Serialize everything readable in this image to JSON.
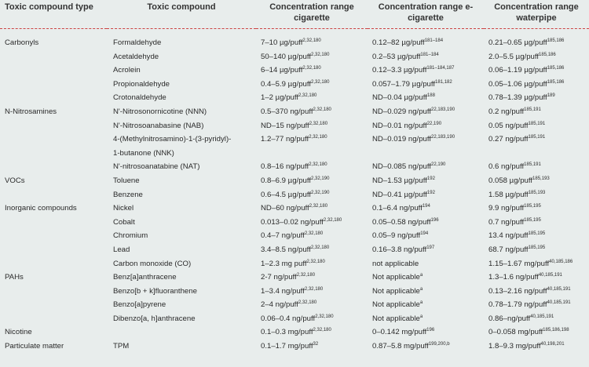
{
  "headers": {
    "type": "Toxic compound type",
    "compound": "Toxic compound",
    "cig": "Concentration range cigarette",
    "ecig": "Concentration range e-cigarette",
    "wp": "Concentration range waterpipe"
  },
  "rows": [
    {
      "type": "Carbonyls",
      "compound": "Formaldehyde",
      "cig": "7–10 µg/puff",
      "cig_ref": "2,32,180",
      "ecig": "0.12–82 µg/puff",
      "ecig_ref": "181–184",
      "wp": "0.21–0.65 µg/puff",
      "wp_ref": "185,186"
    },
    {
      "type": "",
      "compound": "Acetaldehyde",
      "cig": "50–140 µg/puff",
      "cig_ref": "2,32,180",
      "ecig": "0.2–53 µg/puff",
      "ecig_ref": "181–184",
      "wp": "2.0–5.5 µg/puff",
      "wp_ref": "185,186"
    },
    {
      "type": "",
      "compound": "Acrolein",
      "cig": "6–14 µg/puff",
      "cig_ref": "2,32,180",
      "ecig": "0.12–3.3 µg/puff",
      "ecig_ref": "181–184,187",
      "wp": "0.06–1.19 µg/puff",
      "wp_ref": "185,186"
    },
    {
      "type": "",
      "compound": "Propionaldehyde",
      "cig": "0.4–5.9 µg/puff",
      "cig_ref": "2,32,180",
      "ecig": "0.057–1.79 µg/puff",
      "ecig_ref": "181,182",
      "wp": "0.05–1.06 µg/puff",
      "wp_ref": "185,186"
    },
    {
      "type": "",
      "compound": "Crotonaldehyde",
      "cig": "1–2 µg/puff",
      "cig_ref": "2,32,180",
      "ecig": "ND–0.04 µg/puff",
      "ecig_ref": "188",
      "wp": "0.78–1.39 µg/puff",
      "wp_ref": "189"
    },
    {
      "type": "N-Nitrosamines",
      "compound": "N'-Nitrosonornicotine (NNN)",
      "cig": "0.5–370 ng/puff",
      "cig_ref": "2,32,180",
      "ecig": "ND–0.029 ng/puff",
      "ecig_ref": "22,183,190",
      "wp": "0.2 ng/puff",
      "wp_ref": "185,191"
    },
    {
      "type": "",
      "compound": "N'-Nitrosoanabasine (NAB)",
      "cig": "ND–15 ng/puff",
      "cig_ref": "2,32,180",
      "ecig": "ND–0.01 ng/puff",
      "ecig_ref": "22,190",
      "wp": "0.05 ng/puff",
      "wp_ref": "185,191"
    },
    {
      "type": "",
      "compound": "4-(Methylnitrosamino)-1-(3-pyridyl)-",
      "cig": "1.2–77 ng/puff",
      "cig_ref": "2,32,180",
      "ecig": "ND–0.019 ng/puff",
      "ecig_ref": "22,183,190",
      "wp": "0.27 ng/puff",
      "wp_ref": "185,191"
    },
    {
      "type": "",
      "compound": "1-butanone (NNK)",
      "cig": "",
      "cig_ref": "",
      "ecig": "",
      "ecig_ref": "",
      "wp": "",
      "wp_ref": ""
    },
    {
      "type": "",
      "compound": "N'-nitrosoanatabine (NAT)",
      "cig": "0.8–16 ng/puff",
      "cig_ref": "2,32,180",
      "ecig": "ND–0.085 ng/puff",
      "ecig_ref": "22,190",
      "wp": "0.6 ng/puff",
      "wp_ref": "185,191"
    },
    {
      "type": "VOCs",
      "compound": "Toluene",
      "cig": "0.8–6.9 µg/puff",
      "cig_ref": "2,32,190",
      "ecig": "ND–1.53 µg/puff",
      "ecig_ref": "192",
      "wp": "0.058 µg/puff",
      "wp_ref": "185,193"
    },
    {
      "type": "",
      "compound": "Benzene",
      "cig": "0.6–4.5 µg/puff",
      "cig_ref": "2,32,190",
      "ecig": "ND–0.41 µg/puff",
      "ecig_ref": "192",
      "wp": "1.58 µg/puff",
      "wp_ref": "185,193"
    },
    {
      "type": "Inorganic compounds",
      "compound": "Nickel",
      "cig": "ND–60 ng/puff",
      "cig_ref": "2,32,180",
      "ecig": "0.1–6.4 ng/puff",
      "ecig_ref": "194",
      "wp": "9.9 ng/puff",
      "wp_ref": "185,195"
    },
    {
      "type": "",
      "compound": "Cobalt",
      "cig": "0.013–0.02 ng/puff",
      "cig_ref": "2,32,180",
      "ecig": "0.05–0.58 ng/puff",
      "ecig_ref": "196",
      "wp": "0.7 ng/puff",
      "wp_ref": "185,195"
    },
    {
      "type": "",
      "compound": "Chromium",
      "cig": "0.4–7 ng/puff",
      "cig_ref": "2,32,180",
      "ecig": "0.05–9 ng/puff",
      "ecig_ref": "194",
      "wp": "13.4 ng/puff",
      "wp_ref": "185,195"
    },
    {
      "type": "",
      "compound": "Lead",
      "cig": "3.4–8.5 ng/puff",
      "cig_ref": "2,32,180",
      "ecig": "0.16–3.8 ng/puff",
      "ecig_ref": "197",
      "wp": "68.7 ng/puff",
      "wp_ref": "185,195"
    },
    {
      "type": "",
      "compound": "Carbon monoxide (CO)",
      "cig": "1–2.3 mg puff",
      "cig_ref": "2,32,180",
      "ecig": "not applicable",
      "ecig_ref": "",
      "wp": "1.15–1.67 mg/puff",
      "wp_ref": "40,185,186"
    },
    {
      "type": "PAHs",
      "compound": "Benz[a]anthracene",
      "cig": "2-7 ng/puff",
      "cig_ref": "2,32,180",
      "ecig": "Not applicable",
      "ecig_ref": "a",
      "wp": "1.3–1.6 ng/puff",
      "wp_ref": "40,185,191"
    },
    {
      "type": "",
      "compound": "Benzo[b + k]fluoranthene",
      "cig": "1–3.4 ng/puff",
      "cig_ref": "2,32,180",
      "ecig": "Not applicable",
      "ecig_ref": "a",
      "wp": "0.13–2.16 ng/puff",
      "wp_ref": "40,185,191"
    },
    {
      "type": "",
      "compound": "Benzo[a]pyrene",
      "cig": "2–4 ng/puff",
      "cig_ref": "2,32,180",
      "ecig": "Not applicable",
      "ecig_ref": "a",
      "wp": "0.78–1.79 ng/puff",
      "wp_ref": "40,185,191"
    },
    {
      "type": "",
      "compound": "Dibenzo[a, h]anthracene",
      "cig": "0.06–0.4 ng/puff",
      "cig_ref": "2,32,180",
      "ecig": "Not applicable",
      "ecig_ref": "a",
      "wp": "0.86–ng/puff",
      "wp_ref": "40,185,191"
    },
    {
      "type": "Nicotine",
      "compound": "",
      "cig": "0.1–0.3 mg/puff",
      "cig_ref": "2,32,180",
      "ecig": "0–0.142 mg/puff",
      "ecig_ref": "196",
      "wp": "0–0.058 mg/puff",
      "wp_ref": "185,186,198"
    },
    {
      "type": "Particulate matter",
      "compound": "TPM",
      "cig": "0.1–1.7 mg/puff",
      "cig_ref": "32",
      "ecig": "0.87–5.8 mg/puff",
      "ecig_ref": "199,200,b",
      "wp": "1.8–9.3 mg/puff",
      "wp_ref": "40,198,201"
    }
  ]
}
